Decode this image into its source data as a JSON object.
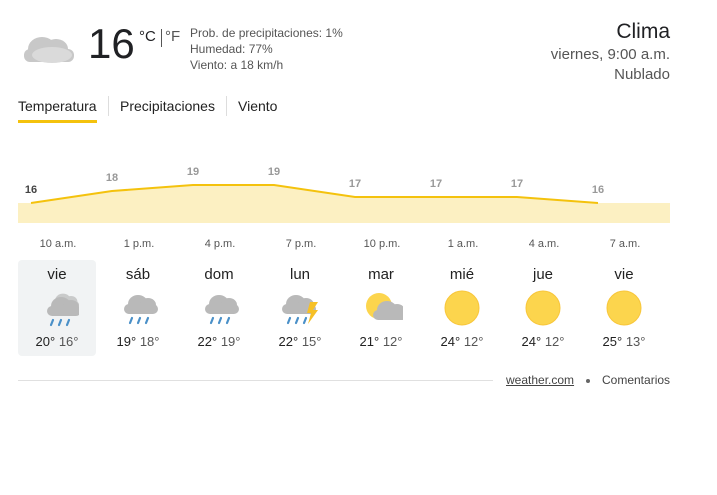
{
  "header": {
    "title": "Clima",
    "time": "viernes, 9:00 a.m.",
    "condition": "Nublado"
  },
  "current": {
    "temp": "16",
    "unit_c": "°C",
    "unit_f": "°F",
    "precip": "Prob. de precipitaciones: 1%",
    "humidity": "Humedad: 77%",
    "wind": "Viento: a 18 km/h"
  },
  "tabs": [
    "Temperatura",
    "Precipitaciones",
    "Viento"
  ],
  "chart_data": {
    "type": "area",
    "categories": [
      "10 a.m.",
      "1 p.m.",
      "4 p.m.",
      "7 p.m.",
      "10 p.m.",
      "1 a.m.",
      "4 a.m.",
      "7 a.m."
    ],
    "values": [
      16,
      18,
      19,
      19,
      17,
      17,
      17,
      16
    ],
    "color": "#f4c20d"
  },
  "days": [
    {
      "day": "vie",
      "high": "20°",
      "low": "16°"
    },
    {
      "day": "sáb",
      "high": "19°",
      "low": "18°"
    },
    {
      "day": "dom",
      "high": "22°",
      "low": "19°"
    },
    {
      "day": "lun",
      "high": "22°",
      "low": "15°"
    },
    {
      "day": "mar",
      "high": "21°",
      "low": "12°"
    },
    {
      "day": "mié",
      "high": "24°",
      "low": "12°"
    },
    {
      "day": "jue",
      "high": "24°",
      "low": "12°"
    },
    {
      "day": "vie",
      "high": "25°",
      "low": "13°"
    }
  ],
  "footer": {
    "source": "weather.com",
    "feedback": "Comentarios"
  }
}
